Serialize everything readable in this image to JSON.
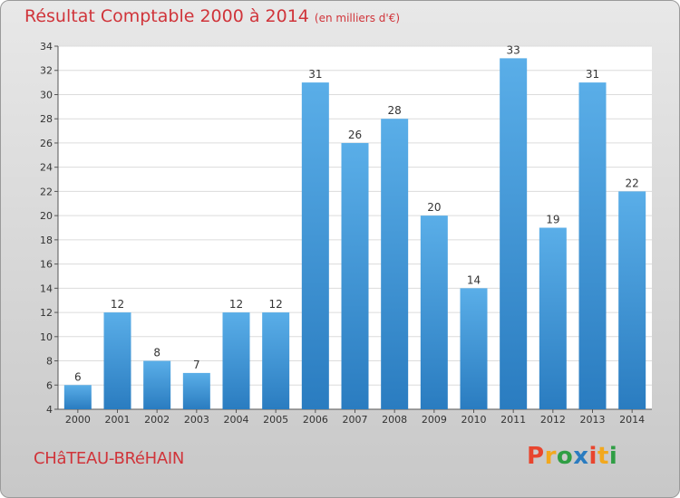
{
  "header": {
    "title": "Résultat Comptable 2000 à 2014",
    "subtitle": "(en milliers d'€)"
  },
  "footer": {
    "commune": "CHâTEAU-BRéHAIN",
    "logo_text": "Proxiti"
  },
  "colors": {
    "title": "#d0343a",
    "bar_light": "#5aaee8",
    "bar_dark": "#2a7cc0",
    "logo": [
      "#e8452e",
      "#f2a81d",
      "#2f9e44",
      "#2a7cc0",
      "#e8452e",
      "#f2a81d",
      "#2f9e44"
    ]
  },
  "chart_data": {
    "type": "bar",
    "categories": [
      "2000",
      "2001",
      "2002",
      "2003",
      "2004",
      "2005",
      "2006",
      "2007",
      "2008",
      "2009",
      "2010",
      "2011",
      "2012",
      "2013",
      "2014"
    ],
    "values": [
      6,
      12,
      8,
      7,
      12,
      12,
      31,
      26,
      28,
      20,
      14,
      33,
      19,
      31,
      22
    ],
    "ylim": [
      4,
      34
    ],
    "yticks": [
      4,
      6,
      8,
      10,
      12,
      14,
      16,
      18,
      20,
      22,
      24,
      26,
      28,
      30,
      32,
      34
    ],
    "grid": true,
    "data_labels": true
  }
}
